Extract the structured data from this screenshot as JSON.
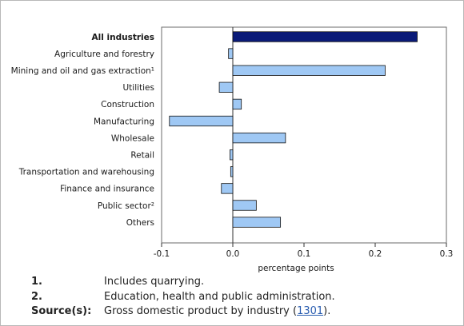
{
  "chart_data": {
    "type": "bar",
    "orientation": "horizontal",
    "categories": [
      "All industries",
      "Agriculture and forestry",
      "Mining and oil and gas extraction¹",
      "Utilities",
      "Construction",
      "Manufacturing",
      "Wholesale",
      "Retail",
      "Transportation and warehousing",
      "Finance and insurance",
      "Public sector²",
      "Others"
    ],
    "values": [
      0.259,
      -0.006,
      0.214,
      -0.019,
      0.012,
      -0.089,
      0.074,
      -0.004,
      -0.003,
      -0.016,
      0.033,
      0.067
    ],
    "bold_categories": [
      "All industries"
    ],
    "xlabel": "percentage points",
    "xlim": [
      -0.1,
      0.3
    ],
    "xticks": [
      -0.1,
      0.0,
      0.1,
      0.2,
      0.3
    ],
    "xtick_labels": [
      "-0.1",
      "0.0",
      "0.1",
      "0.2",
      "0.3"
    ],
    "grid": false,
    "colors": {
      "highlight": "#0a1a78",
      "bar": "#9fc8f4",
      "outline": "#111111"
    }
  },
  "notes": [
    {
      "key": "1.",
      "text": "Includes quarrying."
    },
    {
      "key": "2.",
      "text": "Education, health and public administration."
    }
  ],
  "source": {
    "key": "Source(s):",
    "text_before": "Gross domestic product by industry (",
    "link_text": "1301",
    "text_after": ")."
  }
}
